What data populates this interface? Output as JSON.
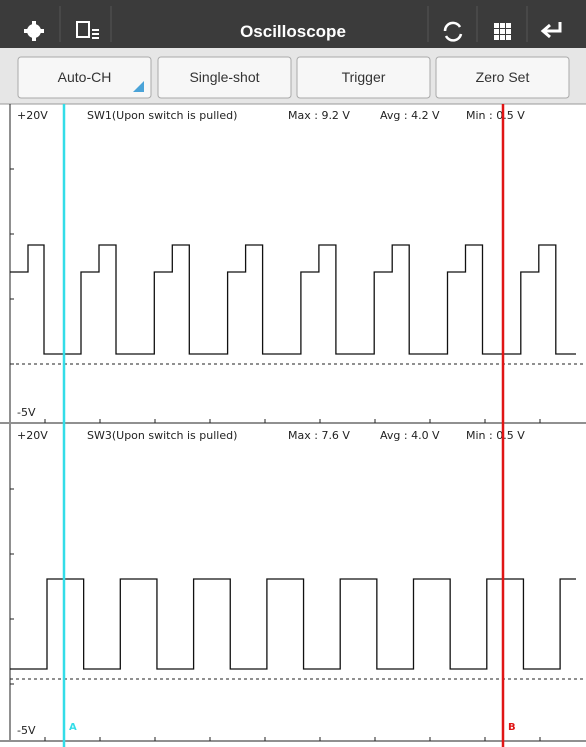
{
  "header": {
    "title": "Oscilloscope"
  },
  "buttons": [
    "Auto-CH",
    "Single-shot",
    "Trigger",
    "Zero Set"
  ],
  "channels": [
    {
      "top_label": "+20V",
      "bottom_label": "-5V",
      "name": "SW1(Upon switch is pulled)",
      "max": "Max : 9.2 V",
      "avg": "Avg : 4.2 V",
      "min": "Min : 0.5 V"
    },
    {
      "top_label": "+20V",
      "bottom_label": "-5V",
      "name": "SW3(Upon switch is pulled)",
      "max": "Max : 7.6 V",
      "avg": "Avg : 4.0 V",
      "min": "Min : 0.5 V"
    }
  ],
  "cursors": [
    "A",
    "B"
  ]
}
